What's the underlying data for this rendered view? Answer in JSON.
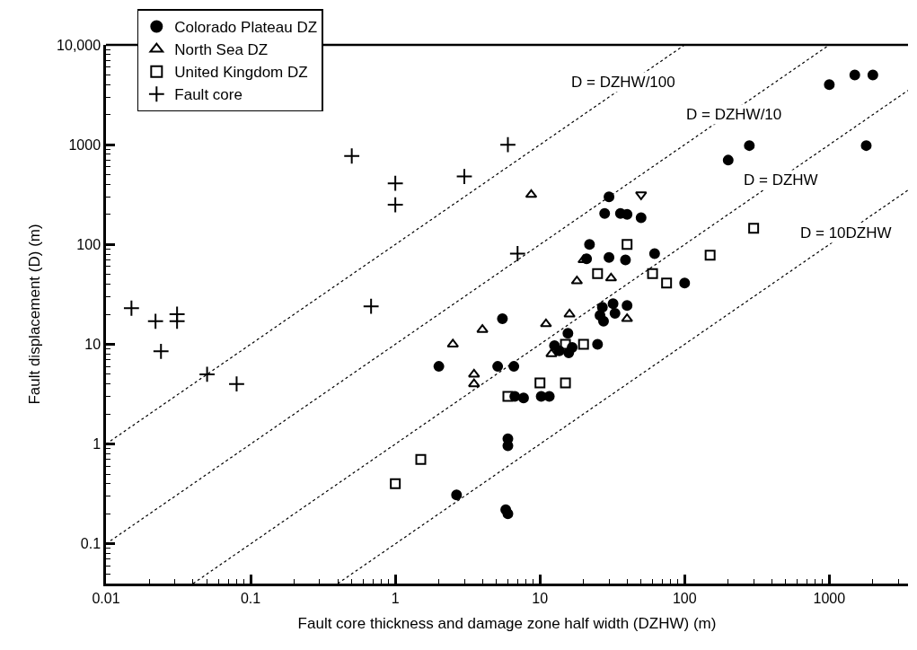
{
  "chart_data": {
    "type": "scatter",
    "xlabel": "Fault core thickness and damage zone half width (DZHW) (m)",
    "ylabel": "Fault displacement (D) (m)",
    "log": "xy",
    "xlim": [
      0.01,
      3500
    ],
    "ylim": [
      0.04,
      10000
    ],
    "xticks": [
      0.01,
      0.1,
      1,
      10,
      100,
      1000
    ],
    "yticks": [
      0.1,
      1,
      10,
      100,
      1000,
      {
        "value": 10000,
        "label": "10,000"
      }
    ],
    "legend": "top left",
    "series": [
      {
        "name": "Colorado Plateau DZ",
        "color": "#000000",
        "marker": "circle",
        "x": [
          1000,
          1500,
          2000,
          280,
          200,
          1800,
          30,
          28,
          36,
          40,
          50,
          22,
          30,
          39,
          62,
          100,
          21,
          27,
          32,
          40,
          26,
          33,
          27.5,
          5.5,
          15.6,
          12.6,
          13.6,
          15.8,
          16.7,
          25,
          2,
          5.1,
          6.6,
          6.7,
          7.7,
          10.2,
          11.6,
          6,
          6,
          2.65,
          5.8,
          6
        ],
        "values": [
          4000,
          5000,
          5000,
          980,
          700,
          980,
          300,
          205,
          205,
          200,
          185,
          100,
          74,
          70,
          81,
          41,
          72,
          23.5,
          25.5,
          24.5,
          19.5,
          20.4,
          17,
          18,
          12.9,
          9.7,
          8.6,
          8.2,
          9.3,
          10,
          6,
          6,
          6,
          3,
          2.9,
          3,
          3,
          1.13,
          0.96,
          0.31,
          0.22,
          0.2
        ]
      },
      {
        "name": "North Sea DZ",
        "color": "#000000",
        "marker": "triangle",
        "x": [
          8.7,
          20,
          18,
          31,
          16,
          11,
          4,
          2.5,
          40,
          12,
          3.5,
          3.5
        ],
        "values": [
          316,
          70,
          43,
          46,
          20,
          16,
          14,
          10,
          18,
          8,
          5,
          4
        ]
      },
      {
        "color": "#000000",
        "marker": "triangle-down",
        "x": [
          50
        ],
        "values": [
          316
        ]
      },
      {
        "name": "United Kingdom DZ",
        "color": "#000000",
        "marker": "square",
        "x": [
          1,
          1.5,
          6,
          10,
          15,
          15,
          20,
          25,
          40,
          60,
          75,
          150,
          300
        ],
        "values": [
          0.4,
          0.7,
          3,
          4.1,
          4.1,
          10,
          10,
          51,
          100,
          51,
          41,
          78,
          145
        ]
      },
      {
        "name": "Fault core",
        "color": "#000000",
        "marker": "cross",
        "x": [
          0.015,
          0.022,
          0.024,
          0.031,
          0.031,
          0.05,
          0.08,
          0.5,
          0.68,
          1,
          1,
          3,
          6,
          7
        ],
        "values": [
          23,
          17,
          8.5,
          20,
          17,
          5,
          4,
          770,
          24,
          410,
          250,
          480,
          1000,
          81
        ]
      },
      {
        "type": "line",
        "color": "#000000",
        "line_style": "dotted",
        "marker": "none",
        "x": [
          0.01,
          100
        ],
        "values": [
          1,
          10000
        ]
      },
      {
        "type": "line",
        "color": "#000000",
        "line_style": "dotted",
        "marker": "none",
        "x": [
          0.01,
          1000
        ],
        "values": [
          0.1,
          10000
        ]
      },
      {
        "type": "line",
        "color": "#000000",
        "line_style": "dotted",
        "marker": "none",
        "x": [
          0.04,
          3500
        ],
        "values": [
          0.04,
          3500
        ]
      },
      {
        "type": "line",
        "color": "#000000",
        "line_style": "dotted",
        "marker": "none",
        "x": [
          0.4,
          3500
        ],
        "values": [
          0.04,
          350
        ]
      }
    ],
    "annotations": [
      {
        "text": "D = DZHW/100",
        "x": 37.5,
        "y": 4270
      },
      {
        "text": "D = DZHW/10",
        "x": 220,
        "y": 2000
      },
      {
        "text": "D = DZHW",
        "x": 460,
        "y": 440
      },
      {
        "text": "D = 10DZHW",
        "x": 1300,
        "y": 130
      }
    ]
  }
}
